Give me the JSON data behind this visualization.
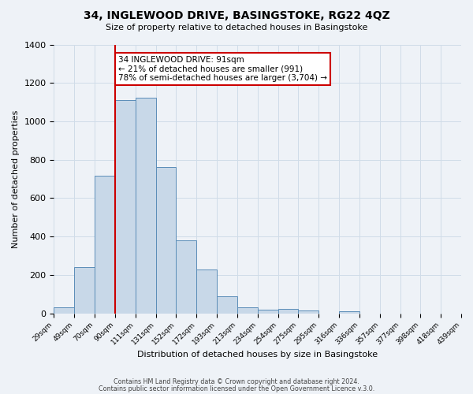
{
  "title": "34, INGLEWOOD DRIVE, BASINGSTOKE, RG22 4QZ",
  "subtitle": "Size of property relative to detached houses in Basingstoke",
  "xlabel": "Distribution of detached houses by size in Basingstoke",
  "ylabel": "Number of detached properties",
  "footer1": "Contains HM Land Registry data © Crown copyright and database right 2024.",
  "footer2": "Contains public sector information licensed under the Open Government Licence v.3.0.",
  "bin_labels": [
    "29sqm",
    "49sqm",
    "70sqm",
    "90sqm",
    "111sqm",
    "131sqm",
    "152sqm",
    "172sqm",
    "193sqm",
    "213sqm",
    "234sqm",
    "254sqm",
    "275sqm",
    "295sqm",
    "316sqm",
    "336sqm",
    "357sqm",
    "377sqm",
    "398sqm",
    "418sqm",
    "439sqm"
  ],
  "bar_heights": [
    30,
    240,
    715,
    1110,
    1125,
    760,
    380,
    230,
    90,
    30,
    20,
    25,
    13,
    0,
    10,
    0,
    0,
    0,
    0,
    0
  ],
  "bar_color": "#c8d8e8",
  "bar_edge_color": "#5b8db8",
  "vline_x": 3,
  "vline_color": "#cc0000",
  "annotation_text": "34 INGLEWOOD DRIVE: 91sqm\n← 21% of detached houses are smaller (991)\n78% of semi-detached houses are larger (3,704) →",
  "annotation_box_color": "#ffffff",
  "annotation_box_edge": "#cc0000",
  "ylim": [
    0,
    1400
  ],
  "yticks": [
    0,
    200,
    400,
    600,
    800,
    1000,
    1200,
    1400
  ],
  "grid_color": "#d0dce8",
  "background_color": "#eef2f7"
}
